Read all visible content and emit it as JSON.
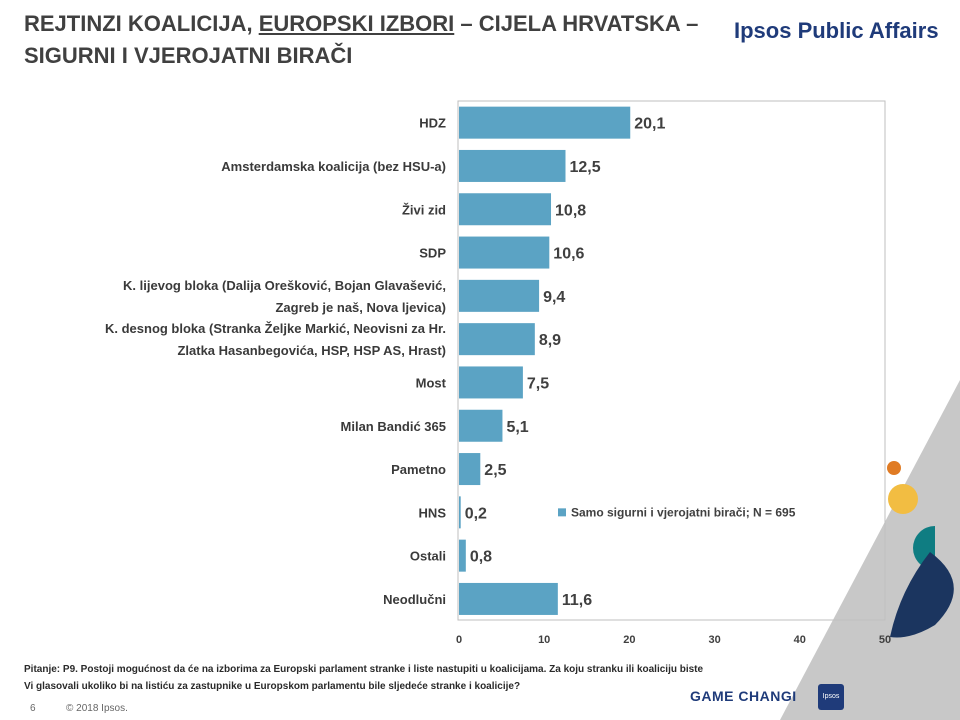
{
  "header": {
    "title_part1": "REJTINZI KOALICIJA, ",
    "title_underlined": "EUROPSKI IZBORI",
    "title_part2": " – CIJELA HRVATSKA –",
    "title_line2": "SIGURNI I VJEROJATNI BIRAČI",
    "brand": "Ipsos Public Affairs"
  },
  "chart_data": {
    "type": "bar",
    "orientation": "horizontal",
    "categories": [
      [
        "HDZ"
      ],
      [
        "Amsterdamska koalicija (bez HSU-a)"
      ],
      [
        "Živi zid"
      ],
      [
        "SDP"
      ],
      [
        "K. lijevog bloka (Dalija Orešković, Bojan Glavašević,",
        "Zagreb je naš, Nova ljevica)"
      ],
      [
        "K. desnog bloka (Stranka Željke Markić, Neovisni za Hr.",
        "Zlatka Hasanbegovića, HSP, HSP AS, Hrast)"
      ],
      [
        "Most"
      ],
      [
        "Milan Bandić 365"
      ],
      [
        "Pametno"
      ],
      [
        "HNS"
      ],
      [
        "Ostali"
      ],
      [
        "Neodlučni"
      ]
    ],
    "values": [
      20.1,
      12.5,
      10.8,
      10.6,
      9.4,
      8.9,
      7.5,
      5.1,
      2.5,
      0.2,
      0.8,
      11.6
    ],
    "value_labels": [
      "20,1",
      "12,5",
      "10,8",
      "10,6",
      "9,4",
      "8,9",
      "7,5",
      "5,1",
      "2,5",
      "0,2",
      "0,8",
      "11,6"
    ],
    "xlim": [
      0,
      50
    ],
    "xticks": [
      0,
      10,
      20,
      30,
      40,
      50
    ],
    "legend": "Samo sigurni i vjerojatni birači; N = 695",
    "legend_position": "inside-right",
    "bar_color": "#5ba3c4",
    "grid": false
  },
  "footer": {
    "question_line1": "Pitanje: P9. Postoji mogućnost da će na izborima za Europski parlament stranke i liste nastupiti u koalicijama.  Za koju stranku ili koaliciju biste",
    "question_line2": "Vi glasovali  ukoliko bi na listiću za zastupnike u Europskom parlamentu bile sljedeće stranke i koalicije?",
    "page_number": "6",
    "copyright": "© 2018 Ipsos.",
    "slogan": "GAME CHANGI",
    "badge": "Ipsos"
  },
  "colors": {
    "accent_orange": "#e07b24",
    "accent_yellow": "#f2bd42",
    "accent_teal": "#0f7d82",
    "accent_navy": "#1b355f",
    "accent_grey": "#c8c8c8"
  }
}
